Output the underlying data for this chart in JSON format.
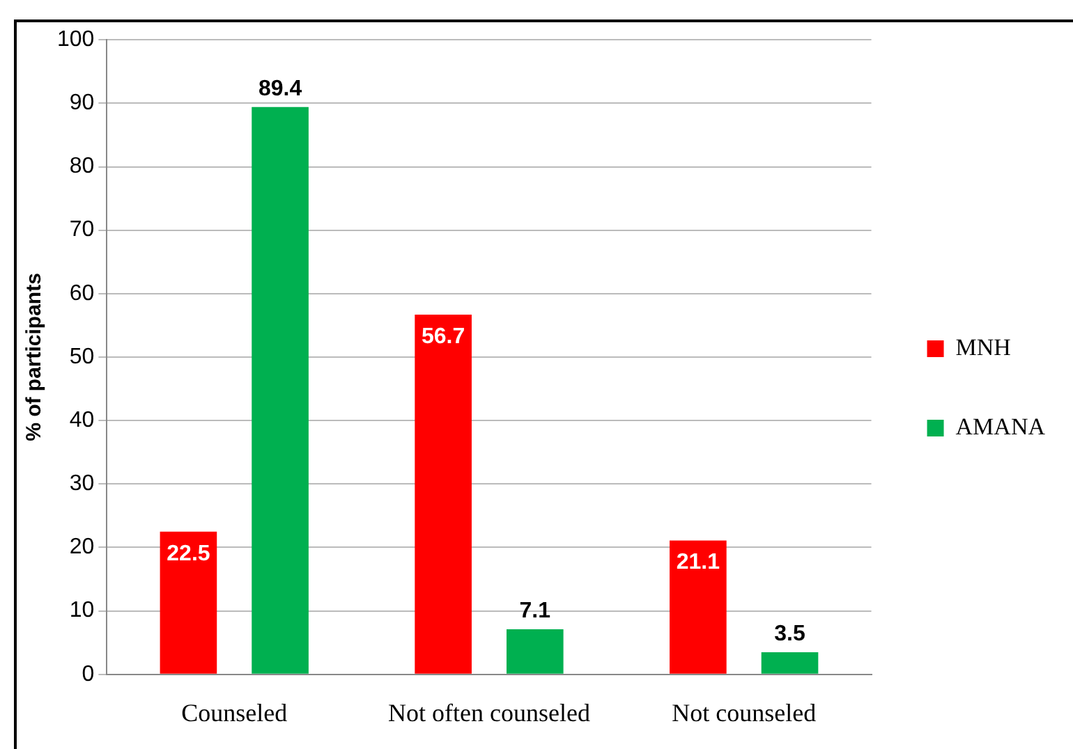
{
  "chart_data": {
    "type": "bar",
    "ylabel": "% of participants",
    "categories": [
      "Counseled",
      "Not often counseled",
      "Not counseled"
    ],
    "series": [
      {
        "name": "MNH",
        "color": "#ff0000",
        "values": [
          22.5,
          56.7,
          21.1
        ]
      },
      {
        "name": "AMANA",
        "color": "#00b050",
        "values": [
          89.4,
          7.1,
          3.5
        ]
      }
    ],
    "ylim": [
      0,
      100
    ],
    "yticks": [
      0,
      10,
      20,
      30,
      40,
      50,
      60,
      70,
      80,
      90,
      100
    ],
    "grid": "y",
    "legend": "right",
    "data_labels": true
  }
}
